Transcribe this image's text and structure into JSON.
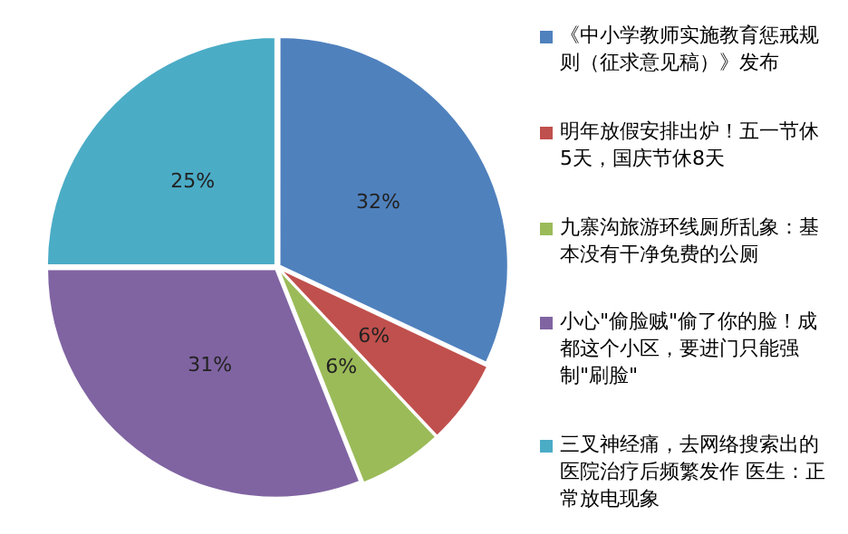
{
  "chart_data": {
    "type": "pie",
    "categories": [
      "《中小学教师实施教育惩戒规则（征求意见稿）》发布",
      "明年放假安排出炉！五一节休5天，国庆节休8天",
      "九寨沟旅游环线厕所乱象：基本没有干净免费的公厕",
      "小心\"偷脸贼\"偷了你的脸！成都这个小区，要进门只能强制\"刷脸\"",
      "三叉神经痛，去网络搜索出的医院治疗后频繁发作 医生：正常放电现象"
    ],
    "values": [
      32,
      6,
      6,
      31,
      25
    ],
    "value_labels": [
      "32%",
      "6%",
      "6%",
      "31%",
      "25%"
    ],
    "colors": [
      "#4f81bd",
      "#c0504d",
      "#9bbb59",
      "#8064a2",
      "#4bacc6"
    ],
    "legend": "right"
  }
}
